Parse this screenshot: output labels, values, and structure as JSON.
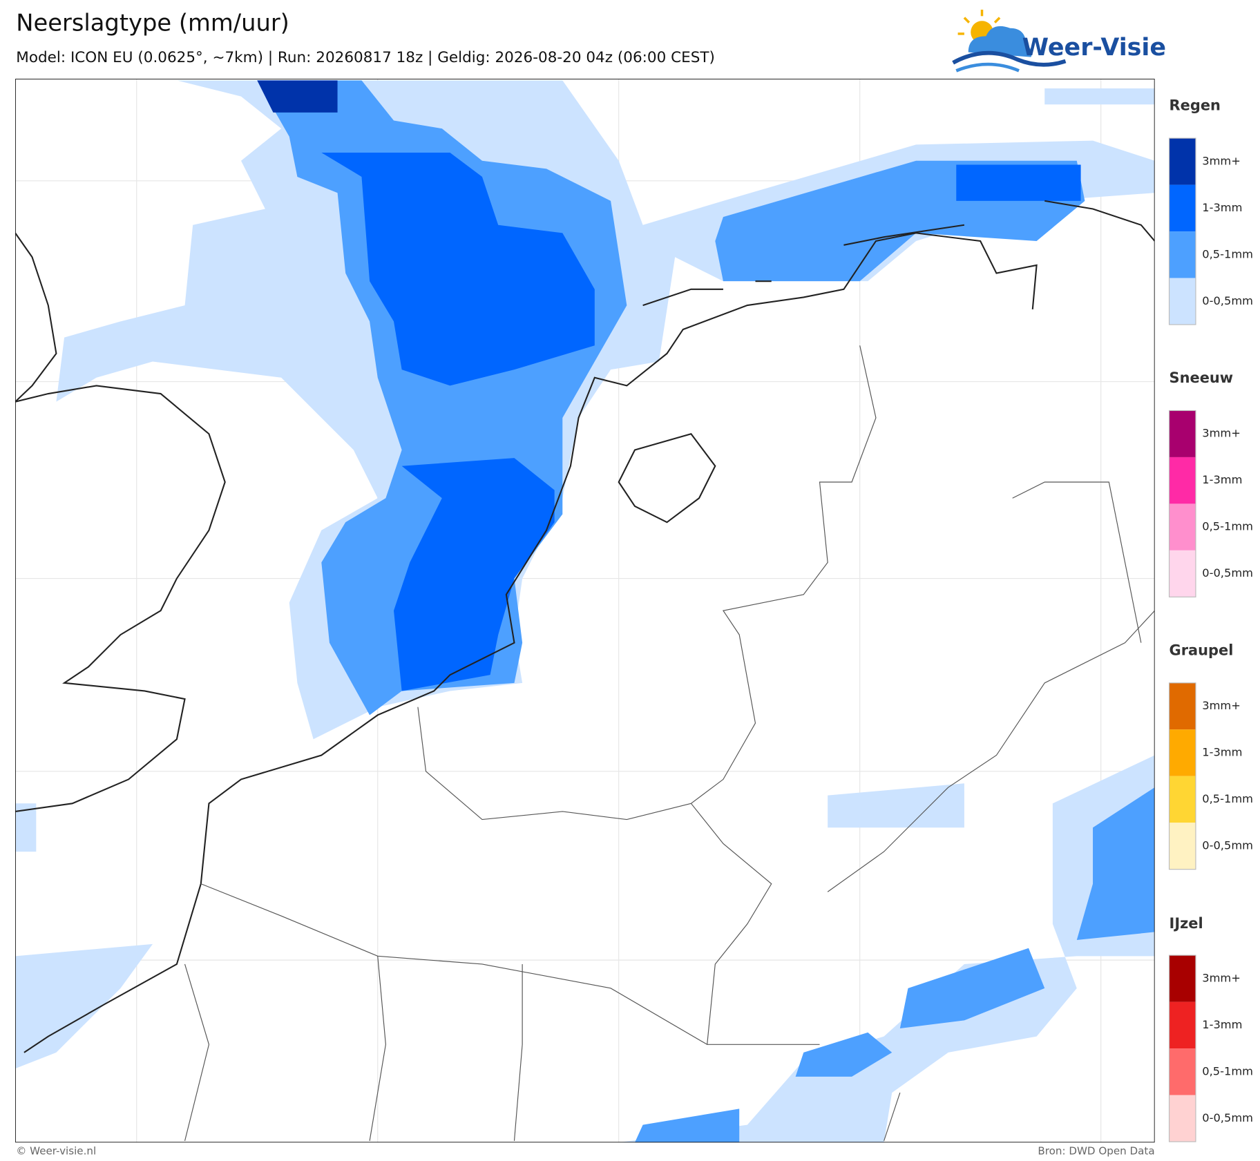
{
  "header": {
    "title": "Neerslagtype (mm/uur)",
    "subtitle": "Model: ICON EU (0.0625°, ~7km)  |  Run: 20260817 18z  |  Geldig: 2026-08-20 04z (06:00 CEST)",
    "logo": "Weer-Visie"
  },
  "legend": [
    {
      "title": "Regen",
      "items": [
        {
          "label": "3mm+",
          "color": "#0033aa"
        },
        {
          "label": "1-3mm",
          "color": "#0066ff"
        },
        {
          "label": "0,5-1mm",
          "color": "#4da0ff"
        },
        {
          "label": "0-0,5mm",
          "color": "#cce3ff"
        }
      ]
    },
    {
      "title": "Sneeuw",
      "items": [
        {
          "label": "3mm+",
          "color": "#a8006e"
        },
        {
          "label": "1-3mm",
          "color": "#ff2aa6"
        },
        {
          "label": "0,5-1mm",
          "color": "#ff8fcd"
        },
        {
          "label": "0-0,5mm",
          "color": "#ffd6ec"
        }
      ]
    },
    {
      "title": "Graupel",
      "items": [
        {
          "label": "3mm+",
          "color": "#e06a00"
        },
        {
          "label": "1-3mm",
          "color": "#ffaa00"
        },
        {
          "label": "0,5-1mm",
          "color": "#ffd633"
        },
        {
          "label": "0-0,5mm",
          "color": "#fff2c2"
        }
      ]
    },
    {
      "title": "IJzel",
      "items": [
        {
          "label": "3mm+",
          "color": "#a80000"
        },
        {
          "label": "1-3mm",
          "color": "#ee2222"
        },
        {
          "label": "0,5-1mm",
          "color": "#ff6b6b"
        },
        {
          "label": "0-0,5mm",
          "color": "#ffd2d2"
        }
      ]
    }
  ],
  "footer": {
    "credit": "© Weer-visie.nl",
    "source": "Bron: DWD Open Data"
  }
}
